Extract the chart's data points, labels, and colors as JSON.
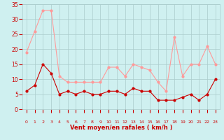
{
  "x": [
    0,
    1,
    2,
    3,
    4,
    5,
    6,
    7,
    8,
    9,
    10,
    11,
    12,
    13,
    14,
    15,
    16,
    17,
    18,
    19,
    20,
    21,
    22,
    23
  ],
  "wind_avg": [
    6,
    8,
    15,
    12,
    5,
    6,
    5,
    6,
    5,
    5,
    6,
    6,
    5,
    7,
    6,
    6,
    3,
    3,
    3,
    4,
    5,
    3,
    5,
    10
  ],
  "wind_gust": [
    19,
    26,
    33,
    33,
    11,
    9,
    9,
    9,
    9,
    9,
    14,
    14,
    11,
    15,
    14,
    13,
    9,
    6,
    24,
    11,
    15,
    15,
    21,
    15
  ],
  "wind_dirs": [
    "↑",
    "↖",
    "↑",
    "↗",
    "↗",
    "↗",
    "↑",
    "↗",
    "↗",
    "↑",
    "↗",
    "↖",
    "↑",
    "↗",
    "↖",
    "↗",
    "↗",
    "↑",
    "↑",
    "↑",
    "↙",
    "↘",
    "↘",
    "↓"
  ],
  "avg_color": "#cc0000",
  "gust_color": "#ff9999",
  "bg_color": "#cff0f0",
  "grid_color": "#aacccc",
  "xlabel": "Vent moyen/en rafales ( km/h )",
  "ylim": [
    0,
    35
  ],
  "yticks": [
    0,
    5,
    10,
    15,
    20,
    25,
    30,
    35
  ],
  "xlim": [
    -0.5,
    23.5
  ],
  "arrow_color": "#cc0000"
}
